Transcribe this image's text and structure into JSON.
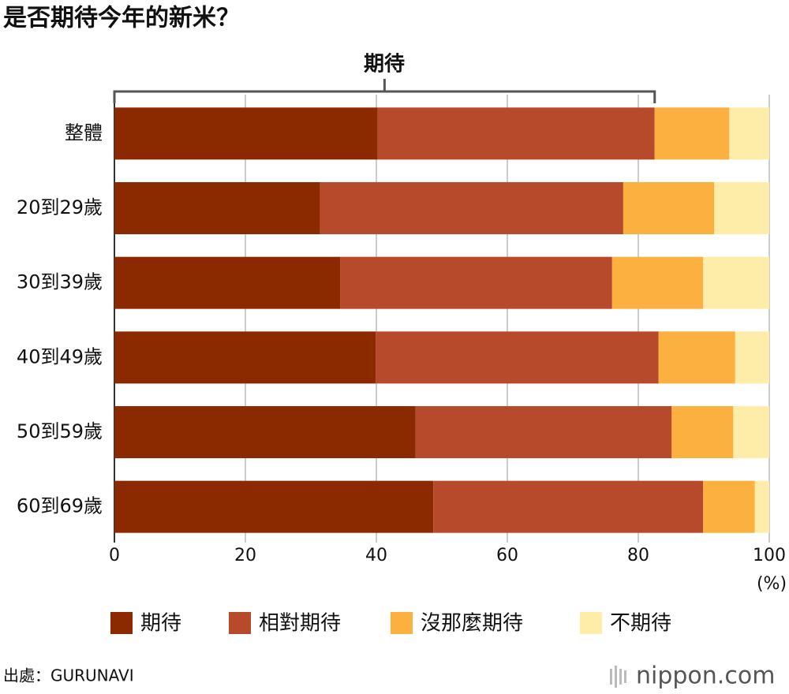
{
  "chart_data": {
    "type": "stacked-barh",
    "title": "是否期待今年的新米？",
    "annotation": "期待",
    "categories": [
      "整體",
      "20到29歲",
      "30到39歲",
      "40到49歲",
      "50到59歲",
      "60到69歲"
    ],
    "series": [
      {
        "name": "期待",
        "color": "#8b2900",
        "values": [
          40.2,
          31.4,
          34.5,
          39.9,
          46.0,
          48.7
        ]
      },
      {
        "name": "相對期待",
        "color": "#b74a2a",
        "values": [
          42.3,
          46.3,
          41.5,
          43.2,
          39.1,
          41.2
        ]
      },
      {
        "name": "沒那麼期待",
        "color": "#fbb03f",
        "values": [
          11.4,
          13.9,
          13.9,
          11.7,
          9.4,
          7.9
        ]
      },
      {
        "name": "不期待",
        "color": "#fdeda8",
        "values": [
          6.1,
          8.4,
          10.1,
          5.2,
          5.5,
          2.2
        ]
      }
    ],
    "xlim": [
      0,
      100
    ],
    "xticks": [
      0,
      20,
      40,
      60,
      80,
      100
    ],
    "x_unit": "(%)",
    "grid": true,
    "source": "出處：GURUNAVI",
    "logo": "nippon.com"
  }
}
